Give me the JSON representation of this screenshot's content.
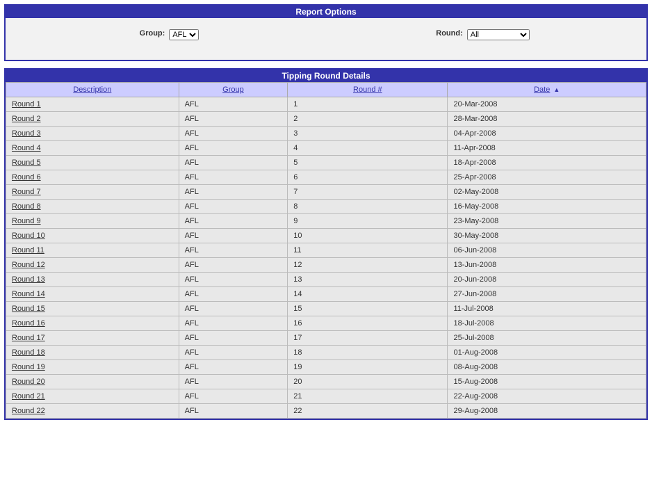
{
  "options": {
    "title": "Report Options",
    "group_label": "Group:",
    "group_value": "AFL",
    "round_label": "Round:",
    "round_value": "All"
  },
  "table": {
    "title": "Tipping Round Details",
    "headers": {
      "description": "Description",
      "group": "Group",
      "round": "Round #",
      "date": "Date"
    },
    "sort_indicator": "▲",
    "rows": [
      {
        "desc": "Round 1",
        "group": "AFL",
        "round": "1",
        "date": "20-Mar-2008"
      },
      {
        "desc": "Round 2",
        "group": "AFL",
        "round": "2",
        "date": "28-Mar-2008"
      },
      {
        "desc": "Round 3",
        "group": "AFL",
        "round": "3",
        "date": "04-Apr-2008"
      },
      {
        "desc": "Round 4",
        "group": "AFL",
        "round": "4",
        "date": "11-Apr-2008"
      },
      {
        "desc": "Round 5",
        "group": "AFL",
        "round": "5",
        "date": "18-Apr-2008"
      },
      {
        "desc": "Round 6",
        "group": "AFL",
        "round": "6",
        "date": "25-Apr-2008"
      },
      {
        "desc": "Round 7",
        "group": "AFL",
        "round": "7",
        "date": "02-May-2008"
      },
      {
        "desc": "Round 8",
        "group": "AFL",
        "round": "8",
        "date": "16-May-2008"
      },
      {
        "desc": "Round 9",
        "group": "AFL",
        "round": "9",
        "date": "23-May-2008"
      },
      {
        "desc": "Round 10",
        "group": "AFL",
        "round": "10",
        "date": "30-May-2008"
      },
      {
        "desc": "Round 11",
        "group": "AFL",
        "round": "11",
        "date": "06-Jun-2008"
      },
      {
        "desc": "Round 12",
        "group": "AFL",
        "round": "12",
        "date": "13-Jun-2008"
      },
      {
        "desc": "Round 13",
        "group": "AFL",
        "round": "13",
        "date": "20-Jun-2008"
      },
      {
        "desc": "Round 14",
        "group": "AFL",
        "round": "14",
        "date": "27-Jun-2008"
      },
      {
        "desc": "Round 15",
        "group": "AFL",
        "round": "15",
        "date": "11-Jul-2008"
      },
      {
        "desc": "Round 16",
        "group": "AFL",
        "round": "16",
        "date": "18-Jul-2008"
      },
      {
        "desc": "Round 17",
        "group": "AFL",
        "round": "17",
        "date": "25-Jul-2008"
      },
      {
        "desc": "Round 18",
        "group": "AFL",
        "round": "18",
        "date": "01-Aug-2008"
      },
      {
        "desc": "Round 19",
        "group": "AFL",
        "round": "19",
        "date": "08-Aug-2008"
      },
      {
        "desc": "Round 20",
        "group": "AFL",
        "round": "20",
        "date": "15-Aug-2008"
      },
      {
        "desc": "Round 21",
        "group": "AFL",
        "round": "21",
        "date": "22-Aug-2008"
      },
      {
        "desc": "Round 22",
        "group": "AFL",
        "round": "22",
        "date": "29-Aug-2008"
      }
    ]
  }
}
